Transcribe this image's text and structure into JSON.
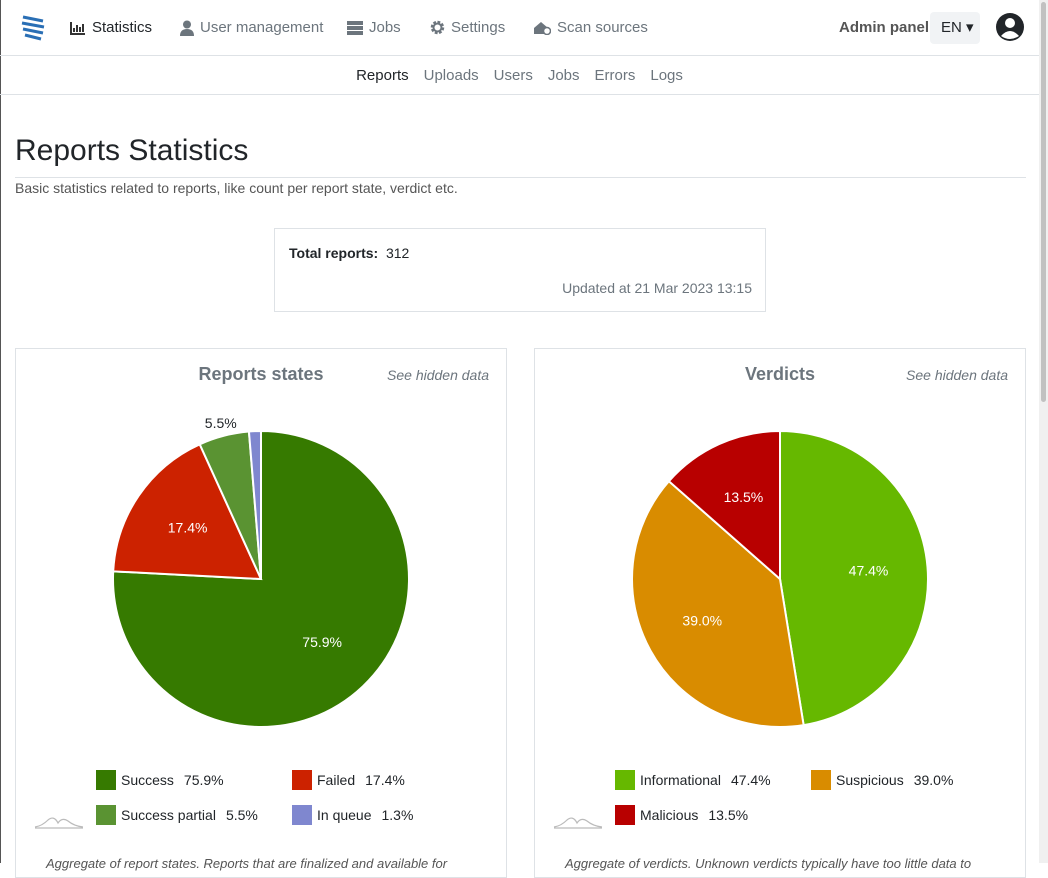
{
  "nav": {
    "items": [
      "Statistics",
      "User management",
      "Jobs",
      "Settings",
      "Scan sources"
    ],
    "admin": "Admin panel",
    "language": "EN"
  },
  "subnav": [
    "Reports",
    "Uploads",
    "Users",
    "Jobs",
    "Errors",
    "Logs"
  ],
  "page": {
    "title": "Reports Statistics",
    "description": "Basic statistics related to reports, like count per report state, verdict etc."
  },
  "summary": {
    "label": "Total reports:",
    "value": 312,
    "updated": "Updated at 21 Mar 2023 13:15"
  },
  "chart_data": [
    {
      "type": "pie",
      "title": "Reports states",
      "link": "See hidden data",
      "categories": [
        "Success",
        "Failed",
        "Success partial",
        "In queue"
      ],
      "values": [
        75.9,
        17.4,
        5.5,
        1.3
      ],
      "value_labels": [
        "75.9%",
        "17.4%",
        "5.5%",
        "1.3%"
      ],
      "colors": [
        "#367a00",
        "#cc2200",
        "#5a9332",
        "#7f87cf"
      ],
      "caption": "Aggregate of report states. Reports that are finalized and available for"
    },
    {
      "type": "pie",
      "title": "Verdicts",
      "link": "See hidden data",
      "categories": [
        "Informational",
        "Suspicious",
        "Malicious"
      ],
      "values": [
        47.4,
        39.0,
        13.5
      ],
      "value_labels": [
        "47.4%",
        "39.0%",
        "13.5%"
      ],
      "colors": [
        "#66b800",
        "#d98c00",
        "#b80000"
      ],
      "caption": "Aggregate of verdicts. Unknown verdicts typically have too little data to"
    }
  ]
}
